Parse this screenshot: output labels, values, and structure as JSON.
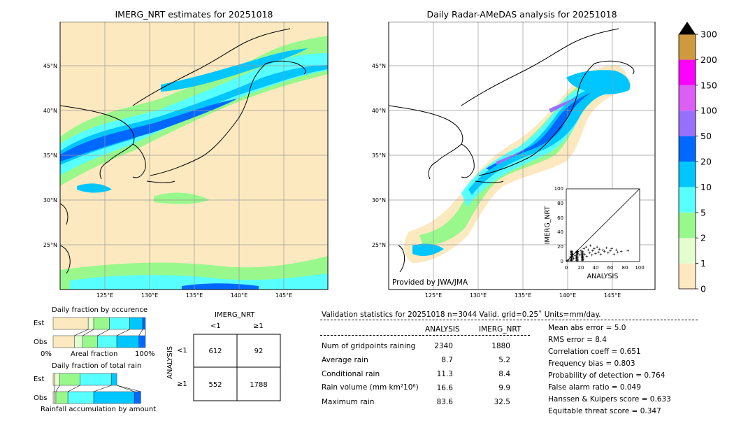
{
  "colors": {
    "bin_0_1": "#fde9c0",
    "bin_1_2": "#e3ffd0",
    "bin_2_5": "#98f88c",
    "bin_5_10": "#58ffff",
    "bin_10_20": "#00c6ff",
    "bin_20_50": "#0068ff",
    "bin_50_100": "#9870ff",
    "bin_100_150": "#dc5ef4",
    "bin_150_200": "#ff00ff",
    "bin_200_300": "#cf9a3e",
    "land_outline": "#000000",
    "grid": "#999999"
  },
  "left_map": {
    "title": "IMERG_NRT estimates for 20251018",
    "lon_labels": [
      "125°E",
      "130°E",
      "135°E",
      "140°E",
      "145°E"
    ],
    "lat_labels": [
      "45°N",
      "40°N",
      "35°N",
      "30°N",
      "25°N"
    ]
  },
  "right_map": {
    "title": "Daily Radar-AMeDAS analysis for 20251018",
    "lon_labels": [
      "125°E",
      "130°E",
      "135°E",
      "140°E",
      "145°E"
    ],
    "lat_labels": [
      "45°N",
      "40°N",
      "35°N",
      "30°N",
      "25°N"
    ],
    "credit": "Provided by JWA/JMA"
  },
  "colorbar": {
    "ticks": [
      "0",
      "1",
      "2",
      "5",
      "10",
      "20",
      "50",
      "100",
      "150",
      "200",
      "300"
    ]
  },
  "scatter": {
    "xlabel": "ANALYSIS",
    "ylabel": "IMERG_NRT",
    "ticks": [
      "0",
      "20",
      "40",
      "60",
      "80",
      "100"
    ]
  },
  "fraction_occurrence": {
    "title": "Daily fraction by occurence",
    "rows": [
      "Est",
      "Obs"
    ],
    "axis_left": "0%",
    "axis_mid": "Areal fraction",
    "axis_right": "100%"
  },
  "fraction_total": {
    "title": "Daily fraction of total rain",
    "rows": [
      "Est",
      "Obs"
    ],
    "footer": "Rainfall accumulation by amount"
  },
  "contingency": {
    "col_title": "IMERG_NRT",
    "col_labels": [
      "<1",
      "≥1"
    ],
    "row_title": "ANALYSIS",
    "row_labels": [
      "<1",
      "≥1"
    ],
    "cells": [
      [
        "612",
        "92"
      ],
      [
        "552",
        "1788"
      ]
    ]
  },
  "validation": {
    "header": "Validation statistics for 20251018  n=3044 Valid. grid=0.25˚ Units=mm/day.",
    "col_analysis": "ANALYSIS",
    "col_imerg": "IMERG_NRT",
    "rows": [
      {
        "label": "Num of gridpoints raining",
        "analysis": "2340",
        "imerg": "1880"
      },
      {
        "label": "Average rain",
        "analysis": "8.7",
        "imerg": "5.2"
      },
      {
        "label": "Conditional rain",
        "analysis": "11.3",
        "imerg": "8.4"
      },
      {
        "label": "Rain volume (mm km²10⁶)",
        "analysis": "16.6",
        "imerg": "9.9"
      },
      {
        "label": "Maximum rain",
        "analysis": "83.6",
        "imerg": "32.5"
      }
    ],
    "scores": [
      "Mean abs error =    5.0",
      "RMS error =    8.4",
      "Correlation coeff =  0.651",
      "Frequency bias =  0.803",
      "Probability of detection =  0.764",
      "False alarm ratio =  0.049",
      "Hanssen & Kuipers score =  0.633",
      "Equitable threat score =  0.347"
    ]
  },
  "chart_data": [
    {
      "type": "heatmap",
      "title": "IMERG_NRT estimates for 20251018",
      "xlabel": "",
      "ylabel": "",
      "x_ticks": [
        "125°E",
        "130°E",
        "135°E",
        "140°E",
        "145°E"
      ],
      "y_ticks": [
        "45°N",
        "40°N",
        "35°N",
        "30°N",
        "25°N"
      ]
    },
    {
      "type": "heatmap",
      "title": "Daily Radar-AMeDAS analysis for 20251018",
      "xlabel": "",
      "ylabel": "",
      "x_ticks": [
        "125°E",
        "130°E",
        "135°E",
        "140°E",
        "145°E"
      ],
      "y_ticks": [
        "45°N",
        "40°N",
        "35°N",
        "30°N",
        "25°N"
      ]
    },
    {
      "type": "scatter",
      "xlabel": "ANALYSIS",
      "ylabel": "IMERG_NRT",
      "xlim": [
        0,
        100
      ],
      "ylim": [
        0,
        100
      ],
      "points": [
        [
          3,
          2
        ],
        [
          5,
          6
        ],
        [
          7,
          3
        ],
        [
          9,
          10
        ],
        [
          10,
          4
        ],
        [
          12,
          8
        ],
        [
          14,
          12
        ],
        [
          15,
          5
        ],
        [
          16,
          14
        ],
        [
          18,
          9
        ],
        [
          20,
          15
        ],
        [
          22,
          6
        ],
        [
          24,
          18
        ],
        [
          25,
          10
        ],
        [
          27,
          20
        ],
        [
          28,
          7
        ],
        [
          30,
          16
        ],
        [
          32,
          12
        ],
        [
          33,
          22
        ],
        [
          35,
          9
        ],
        [
          36,
          15
        ],
        [
          38,
          18
        ],
        [
          40,
          11
        ],
        [
          42,
          20
        ],
        [
          44,
          13
        ],
        [
          45,
          17
        ],
        [
          47,
          10
        ],
        [
          50,
          16
        ],
        [
          52,
          14
        ],
        [
          55,
          19
        ],
        [
          57,
          12
        ],
        [
          60,
          15
        ],
        [
          62,
          18
        ],
        [
          65,
          10
        ],
        [
          68,
          16
        ],
        [
          70,
          13
        ],
        [
          75,
          14
        ],
        [
          84,
          15
        ]
      ]
    },
    {
      "type": "table",
      "title": "Daily fraction by occurence",
      "series": [
        {
          "name": "Est",
          "values": [
            0.38,
            0.06,
            0.17,
            0.22,
            0.14,
            0.03
          ]
        },
        {
          "name": "Obs",
          "values": [
            0.23,
            0.09,
            0.16,
            0.21,
            0.24,
            0.07
          ]
        }
      ]
    },
    {
      "type": "table",
      "title": "Daily fraction of total rain",
      "series": [
        {
          "name": "Est",
          "values": [
            0.02,
            0.05,
            0.22,
            0.34,
            0.06,
            0.0
          ]
        },
        {
          "name": "Obs",
          "values": [
            0.01,
            0.02,
            0.13,
            0.28,
            0.44,
            0.07
          ]
        }
      ]
    }
  ]
}
